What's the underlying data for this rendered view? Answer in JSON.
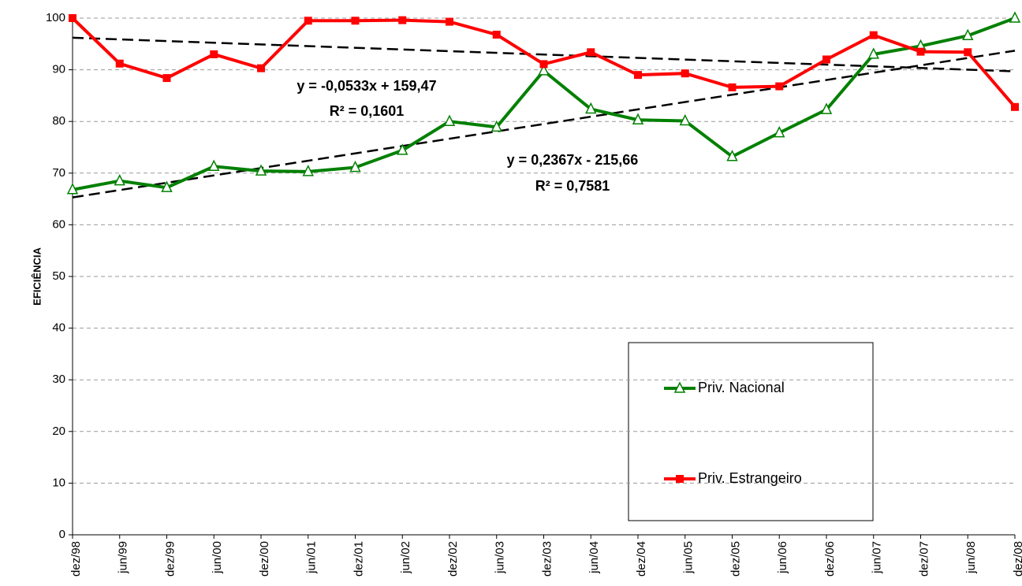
{
  "chart_data": {
    "type": "line",
    "ylabel": "EFICIÊNCIA",
    "categories": [
      "dez/98",
      "jun/99",
      "dez/99",
      "jun/00",
      "dez/00",
      "jun/01",
      "dez/01",
      "jun/02",
      "dez/02",
      "jun/03",
      "dez/03",
      "jun/04",
      "dez/04",
      "jun/05",
      "dez/05",
      "jun/06",
      "dez/06",
      "jun/07",
      "dez/07",
      "jun/08",
      "dez/08"
    ],
    "series": [
      {
        "name": "Priv. Nacional",
        "color": "#008000",
        "marker": "triangle",
        "values": [
          66.8,
          68.5,
          67.2,
          71.3,
          70.4,
          70.3,
          71.1,
          74.4,
          80.0,
          78.9,
          89.8,
          82.4,
          80.3,
          80.1,
          73.2,
          77.8,
          82.3,
          93.0,
          94.6,
          96.6,
          100
        ]
      },
      {
        "name": "Priv. Estrangeiro",
        "color": "#ff0000",
        "marker": "square",
        "values": [
          100,
          91.2,
          88.4,
          93.0,
          90.3,
          99.5,
          99.5,
          99.6,
          99.3,
          96.8,
          91.1,
          93.4,
          89.0,
          89.3,
          86.6,
          86.8,
          92.0,
          96.7,
          93.5,
          93.4,
          82.8
        ]
      }
    ],
    "trendlines": [
      {
        "start": 96.2,
        "end": 89.7
      },
      {
        "start": 65.3,
        "end": 93.7
      }
    ],
    "annotations": [
      {
        "text": "y = -0,0533x + 159,47"
      },
      {
        "text": "R² = 0,1601"
      },
      {
        "text": "y = 0,2367x - 215,66"
      },
      {
        "text": "R² = 0,7581"
      }
    ],
    "ylim": [
      0,
      100
    ],
    "yticks": [
      0,
      10,
      20,
      30,
      40,
      50,
      60,
      70,
      80,
      90,
      100
    ],
    "grid": true
  }
}
